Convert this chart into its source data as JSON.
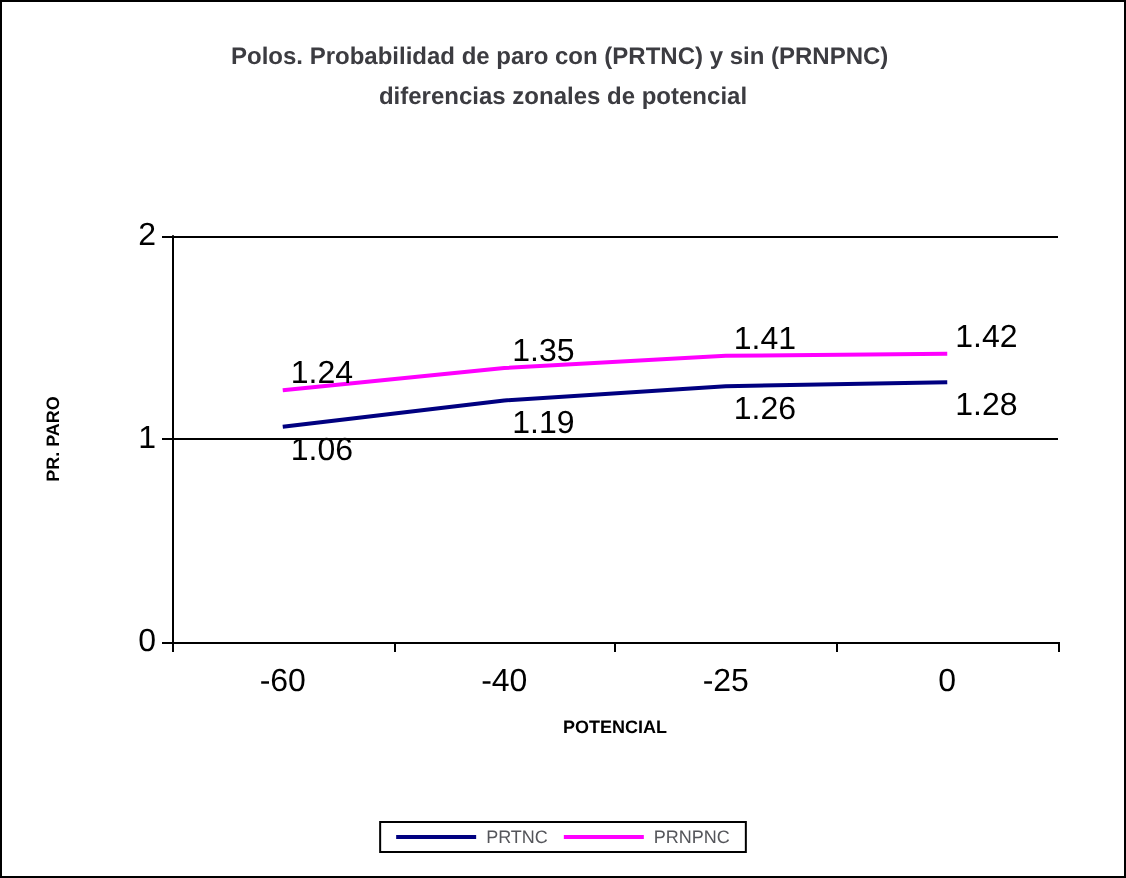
{
  "chart_data": {
    "type": "line",
    "title": "Polos. Probabilidad de paro con (PRTNC) y sin (PRNPNC) diferencias zonales de potencial",
    "xlabel": "POTENCIAL",
    "ylabel": "PR. PARO",
    "categories": [
      "-60",
      "-40",
      "-25",
      "0"
    ],
    "series": [
      {
        "name": "PRTNC",
        "color": "#000080",
        "values": [
          1.06,
          1.19,
          1.26,
          1.28
        ]
      },
      {
        "name": "PRNPNC",
        "color": "#ff00ff",
        "values": [
          1.24,
          1.35,
          1.41,
          1.42
        ]
      }
    ],
    "ylim": [
      0,
      2
    ],
    "yticks": [
      0,
      1,
      2
    ],
    "grid": "y",
    "legend": "bottom",
    "data_labels": true,
    "marker": "none",
    "line_style": "solid"
  }
}
